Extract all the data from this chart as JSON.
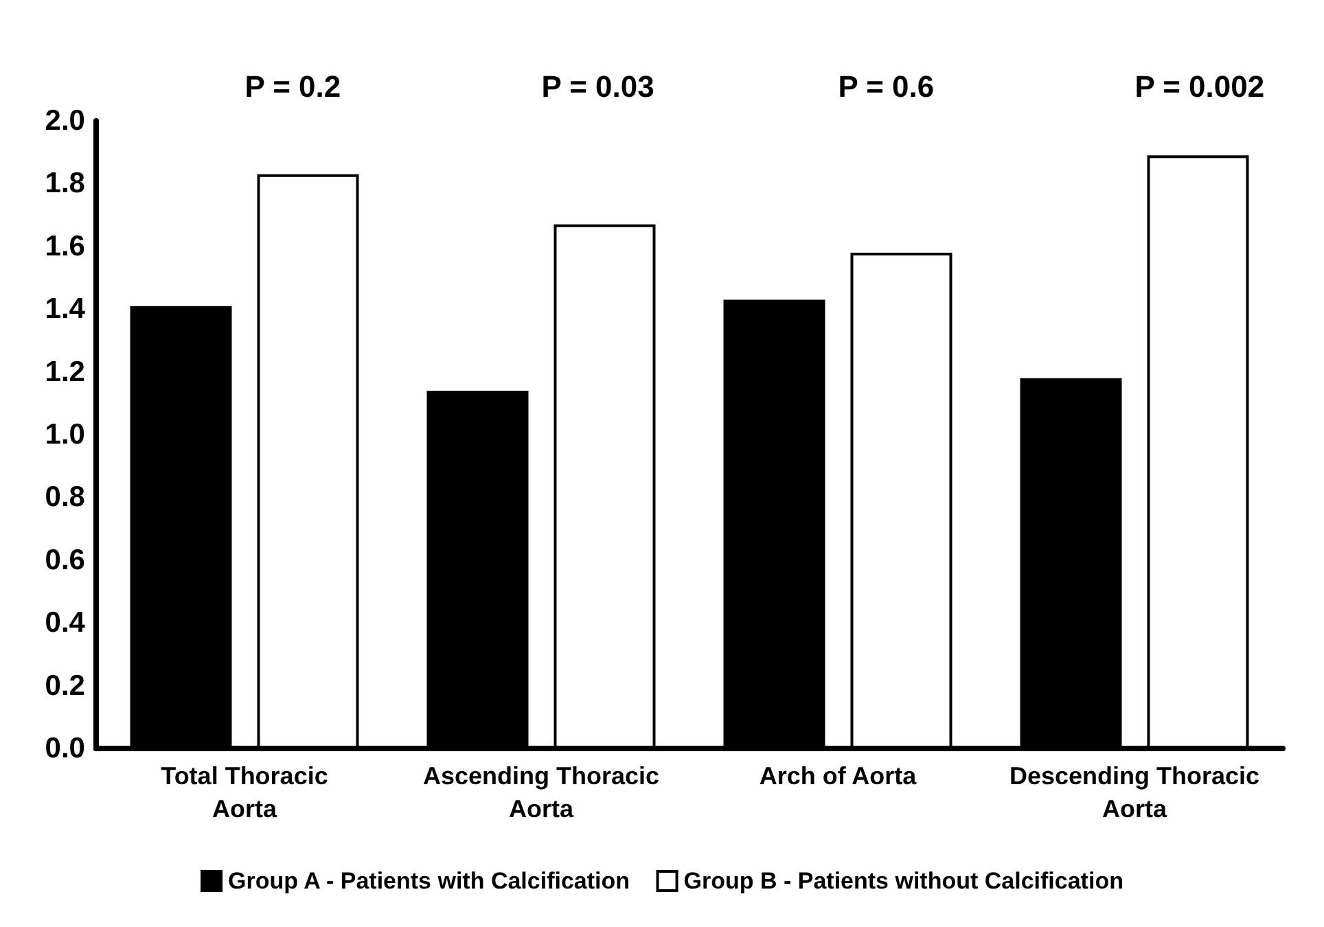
{
  "chart_data": {
    "type": "bar",
    "categories": [
      "Total Thoracic\nAorta",
      "Ascending Thoracic\nAorta",
      "Arch of Aorta",
      "Descending Thoracic\nAorta"
    ],
    "series": [
      {
        "name": "Group A - Patients with Calcification",
        "color": "#000000",
        "values": [
          1.41,
          1.14,
          1.43,
          1.18
        ]
      },
      {
        "name": "Group B - Patients without Calcification",
        "color": "#ffffff",
        "values": [
          1.83,
          1.67,
          1.58,
          1.89
        ]
      }
    ],
    "annotations": [
      "P = 0.2",
      "P = 0.03",
      "P = 0.6",
      "P = 0.002"
    ],
    "ylim": [
      0,
      2
    ],
    "yticks": [
      {
        "value": 0,
        "label": "0.0"
      },
      0.2,
      0.4,
      0.6,
      0.8,
      {
        "value": 1,
        "label": "1.0"
      },
      1.2,
      1.4,
      1.6,
      1.8,
      {
        "value": 2,
        "label": "2.0"
      }
    ],
    "grid": false,
    "legend": "bottom"
  }
}
